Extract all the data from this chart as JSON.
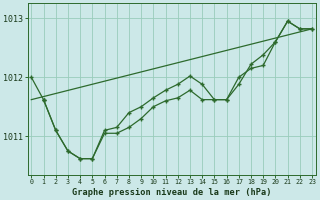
{
  "xlabel": "Graphe pression niveau de la mer (hPa)",
  "bg_color": "#cce8e8",
  "grid_color": "#99ccbb",
  "line_color": "#2d6a2d",
  "x_values": [
    0,
    1,
    2,
    3,
    4,
    5,
    6,
    7,
    8,
    9,
    10,
    11,
    12,
    13,
    14,
    15,
    16,
    17,
    18,
    19,
    20,
    21,
    22,
    23
  ],
  "series_start": {
    "x": [
      0,
      1
    ],
    "y": [
      1012.0,
      1011.62
    ]
  },
  "series_main": {
    "x": [
      1,
      2,
      3,
      4,
      5,
      6,
      7,
      8,
      9,
      10,
      11,
      12,
      13,
      14,
      15,
      16,
      17,
      18,
      19,
      20,
      21,
      22,
      23
    ],
    "y": [
      1011.62,
      1011.1,
      1010.75,
      1010.62,
      1010.62,
      1011.05,
      1011.05,
      1011.15,
      1011.3,
      1011.5,
      1011.6,
      1011.65,
      1011.78,
      1011.62,
      1011.62,
      1011.62,
      1012.0,
      1012.15,
      1012.2,
      1012.6,
      1012.95,
      1012.82,
      1012.82
    ]
  },
  "series_upper": {
    "x": [
      1,
      2,
      3,
      4,
      5,
      6,
      7,
      8,
      9,
      10,
      11,
      12,
      13,
      14,
      15,
      16,
      17,
      18,
      19,
      20,
      21,
      22,
      23
    ],
    "y": [
      1011.62,
      1011.1,
      1010.75,
      1010.62,
      1010.62,
      1011.1,
      1011.15,
      1011.4,
      1011.5,
      1011.65,
      1011.78,
      1011.88,
      1012.02,
      1011.88,
      1011.62,
      1011.62,
      1011.88,
      1012.22,
      1012.38,
      1012.6,
      1012.95,
      1012.82,
      1012.82
    ]
  },
  "trend_x": [
    0,
    23
  ],
  "trend_y": [
    1011.62,
    1012.82
  ],
  "ylim_min": 1010.35,
  "ylim_max": 1013.25,
  "yticks": [
    1011,
    1012,
    1013
  ],
  "xlim_min": -0.3,
  "xlim_max": 23.3
}
